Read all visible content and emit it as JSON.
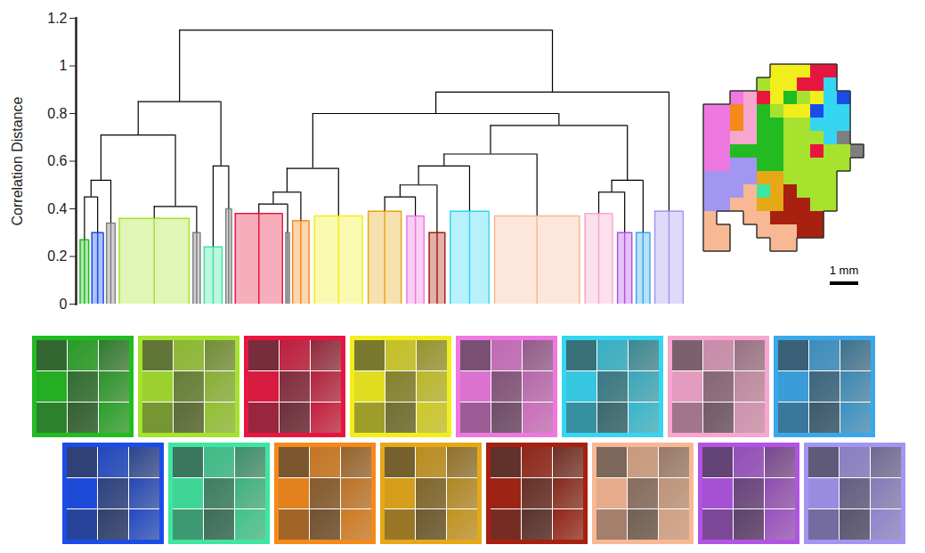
{
  "chart_data": {
    "type": "dendrogram",
    "ylabel": "Correlation Distance",
    "ylim": [
      0,
      1.2
    ],
    "yticks": [
      0,
      0.2,
      0.4,
      0.6,
      0.8,
      1,
      1.2
    ],
    "tick_labels": "y",
    "clusters": {
      "colors": [
        "#22bb22",
        "#1a4de8",
        "#7f7f7f",
        "#a6e22e",
        "#7f7f7f",
        "#3ee6a0",
        "#7f7f7f",
        "#e8163f",
        "#7f7f7f",
        "#f5891a",
        "#f2ee1c",
        "#e6a817",
        "#ee78e0",
        "#a82010",
        "#35d6f2",
        "#f8b894",
        "#f7a6cf",
        "#b154e4",
        "#3aa8e8",
        "#a395f2"
      ],
      "heights": [
        0.27,
        0.3,
        0.34,
        0.36,
        0.3,
        0.24,
        0.4,
        0.38,
        0.3,
        0.35,
        0.37,
        0.39,
        0.37,
        0.3,
        0.39,
        0.37,
        0.38,
        0.3,
        0.3,
        0.39
      ],
      "sizes": [
        12,
        16,
        12,
        80,
        10,
        25,
        8,
        56,
        5,
        23,
        57,
        41,
        24,
        22,
        47,
        96,
        35,
        20,
        19,
        36
      ]
    },
    "merges": [
      {
        "children": [
          0,
          1
        ],
        "height": 0.45
      },
      {
        "children": [
          20,
          2
        ],
        "height": 0.52
      },
      {
        "children": [
          3,
          4
        ],
        "height": 0.41
      },
      {
        "children": [
          21,
          22
        ],
        "height": 0.71
      },
      {
        "children": [
          5,
          6
        ],
        "height": 0.58
      },
      {
        "children": [
          23,
          24
        ],
        "height": 0.85
      },
      {
        "children": [
          7,
          8
        ],
        "height": 0.42
      },
      {
        "children": [
          26,
          9
        ],
        "height": 0.47
      },
      {
        "children": [
          27,
          10
        ],
        "height": 0.57
      },
      {
        "children": [
          11,
          12
        ],
        "height": 0.45
      },
      {
        "children": [
          29,
          13
        ],
        "height": 0.5
      },
      {
        "children": [
          30,
          14
        ],
        "height": 0.58
      },
      {
        "children": [
          31,
          15
        ],
        "height": 0.63
      },
      {
        "children": [
          16,
          17
        ],
        "height": 0.47
      },
      {
        "children": [
          33,
          18
        ],
        "height": 0.52
      },
      {
        "children": [
          32,
          34
        ],
        "height": 0.75
      },
      {
        "children": [
          28,
          35
        ],
        "height": 0.8
      },
      {
        "children": [
          36,
          19
        ],
        "height": 0.89
      },
      {
        "children": [
          25,
          37
        ],
        "height": 1.15
      }
    ],
    "panels": [
      [
        0,
        3,
        7,
        10,
        12,
        14,
        16,
        18
      ],
      [
        1,
        5,
        9,
        11,
        13,
        15,
        17,
        19
      ]
    ]
  },
  "map": {
    "scale_label": "1 mm"
  }
}
